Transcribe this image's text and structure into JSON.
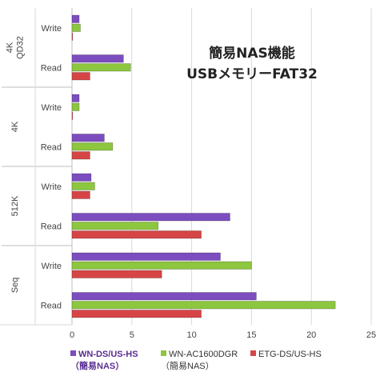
{
  "chart_data": {
    "type": "bar",
    "orientation": "horizontal",
    "title": "簡易NAS機能",
    "subtitle": "USBメモリーFAT32",
    "groups": [
      "4K QD32",
      "4K",
      "512K",
      "Seq"
    ],
    "categories": [
      {
        "group": "4K QD32",
        "label": "Write"
      },
      {
        "group": "4K QD32",
        "label": "Read"
      },
      {
        "group": "4K",
        "label": "Write"
      },
      {
        "group": "4K",
        "label": "Read"
      },
      {
        "group": "512K",
        "label": "Write"
      },
      {
        "group": "512K",
        "label": "Read"
      },
      {
        "group": "Seq",
        "label": "Write"
      },
      {
        "group": "Seq",
        "label": "Read"
      }
    ],
    "series": [
      {
        "name": "WN-DS/US-HS",
        "name_line2": "（簡易NAS）",
        "color": "#7c4dbf",
        "values": [
          0.6,
          4.3,
          0.6,
          2.7,
          1.6,
          13.2,
          12.4,
          15.4
        ]
      },
      {
        "name": "WN-AC1600DGR",
        "name_line2": "（簡易NAS）",
        "color": "#8dc63f",
        "values": [
          0.7,
          4.9,
          0.6,
          3.4,
          1.9,
          7.2,
          15.0,
          22.0
        ]
      },
      {
        "name": "ETG-DS/US-HS",
        "name_line2": "",
        "color": "#d64545",
        "values": [
          0.05,
          1.5,
          0.05,
          1.5,
          1.5,
          10.8,
          7.5,
          10.8
        ]
      }
    ],
    "xlim": [
      0,
      25
    ],
    "xticks": [
      "0",
      "5",
      "10",
      "15",
      "20",
      "25"
    ],
    "grid": true,
    "legend_position": "bottom"
  }
}
